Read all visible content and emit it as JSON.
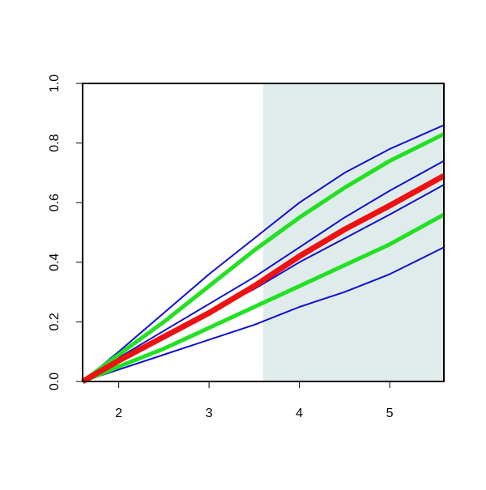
{
  "chart_data": {
    "type": "line",
    "x": [
      1.6,
      2.0,
      2.5,
      3.0,
      3.5,
      4.0,
      4.5,
      5.0,
      5.6
    ],
    "series": [
      {
        "color": "#1010cc",
        "width": 2,
        "values": [
          0,
          0.1,
          0.23,
          0.36,
          0.48,
          0.6,
          0.7,
          0.78,
          0.86
        ]
      },
      {
        "color": "#1010cc",
        "width": 2,
        "values": [
          0,
          0.08,
          0.17,
          0.26,
          0.35,
          0.45,
          0.55,
          0.64,
          0.74
        ]
      },
      {
        "color": "#1010cc",
        "width": 2,
        "values": [
          0,
          0.07,
          0.15,
          0.23,
          0.31,
          0.4,
          0.48,
          0.56,
          0.66
        ]
      },
      {
        "color": "#1010cc",
        "width": 2,
        "values": [
          0,
          0.04,
          0.09,
          0.14,
          0.19,
          0.25,
          0.3,
          0.36,
          0.45
        ]
      },
      {
        "color": "#22e022",
        "width": 5,
        "values": [
          0,
          0.09,
          0.2,
          0.32,
          0.44,
          0.55,
          0.65,
          0.74,
          0.83
        ]
      },
      {
        "color": "#22e022",
        "width": 5,
        "values": [
          0,
          0.05,
          0.11,
          0.18,
          0.25,
          0.32,
          0.39,
          0.46,
          0.56
        ]
      },
      {
        "color": "#ee1111",
        "width": 7,
        "values": [
          0,
          0.07,
          0.15,
          0.23,
          0.32,
          0.42,
          0.51,
          0.59,
          0.69
        ]
      }
    ],
    "shaded_region": {
      "xmin": 3.6,
      "xmax": 5.6,
      "color": "#e0ecec"
    },
    "xlim": [
      1.6,
      5.6
    ],
    "xticks": [
      2,
      3,
      4,
      5
    ],
    "ylim": [
      0,
      1
    ],
    "yticks": [
      {
        "value": 0,
        "label": "0.0"
      },
      {
        "value": 0.2,
        "label": "0.2"
      },
      {
        "value": 0.4,
        "label": "0.4"
      },
      {
        "value": 0.6,
        "label": "0.6"
      },
      {
        "value": 0.8,
        "label": "0.8"
      },
      {
        "value": 1,
        "label": "1.0"
      }
    ]
  }
}
